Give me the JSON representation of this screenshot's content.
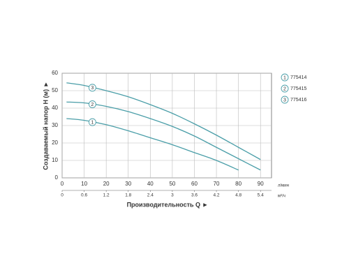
{
  "chart_data": {
    "type": "line",
    "y_label": "Создаваемый напор H (м) ►",
    "x_label": "Производительность Q ►",
    "x_unit": "л/мин",
    "x2_unit": "м³/ч",
    "xlim": [
      0,
      95
    ],
    "xticks": [
      0,
      10,
      20,
      30,
      40,
      50,
      60,
      70,
      80,
      90
    ],
    "x2lim": [
      0,
      5.7
    ],
    "x2ticks": [
      0,
      0.6,
      1.2,
      1.8,
      2.4,
      3.0,
      3.6,
      4.2,
      4.8,
      5.4
    ],
    "ylim": [
      0,
      60
    ],
    "yticks": [
      0,
      10,
      20,
      30,
      40,
      50,
      60
    ],
    "grid": true,
    "series": [
      {
        "name": "775414",
        "label": "1",
        "color": "#4a9ea8",
        "x": [
          2,
          10,
          20,
          30,
          40,
          50,
          60,
          70,
          80
        ],
        "values": [
          34,
          33,
          30.5,
          27,
          23,
          19,
          14.5,
          10,
          4.5
        ]
      },
      {
        "name": "775415",
        "label": "2",
        "color": "#4a9ea8",
        "x": [
          2,
          10,
          20,
          30,
          40,
          50,
          60,
          70,
          80,
          90
        ],
        "values": [
          43.5,
          43,
          41,
          38,
          34,
          29.5,
          24,
          17.5,
          11,
          4.5
        ]
      },
      {
        "name": "775416",
        "label": "3",
        "color": "#4a9ea8",
        "x": [
          2,
          10,
          20,
          30,
          40,
          50,
          60,
          70,
          80,
          90
        ],
        "values": [
          54.5,
          53,
          50,
          46.5,
          42,
          37,
          31,
          24.5,
          17.5,
          10.5
        ]
      }
    ]
  }
}
